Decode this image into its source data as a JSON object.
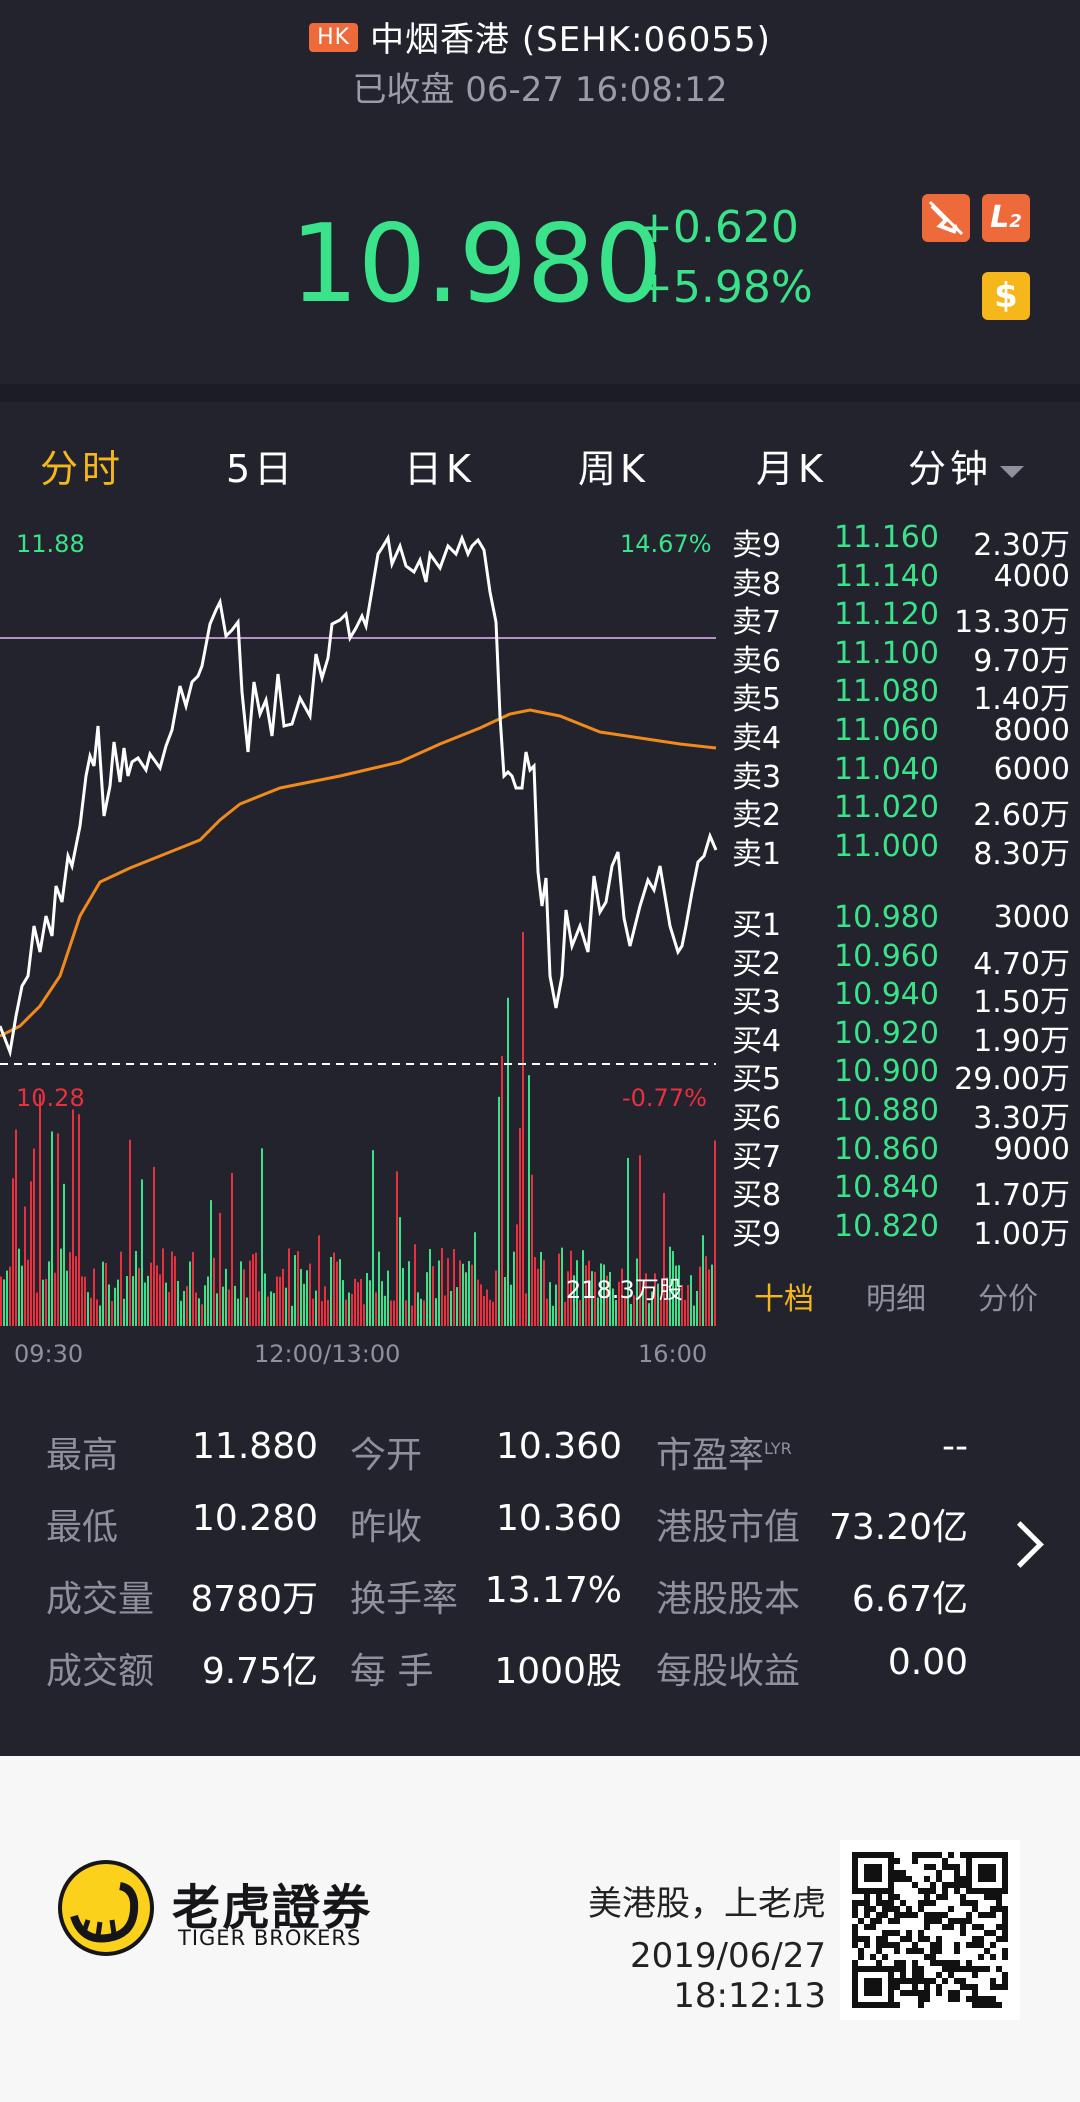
{
  "header": {
    "market_badge": "HK",
    "title": "中烟香港 (SEHK:06055)",
    "status": "已收盘 06-27 16:08:12",
    "price": "10.980",
    "change": "+0.620",
    "change_pct": "+5.98%",
    "icons": [
      "bell-off-icon",
      "level2-icon",
      "dollar-icon"
    ],
    "l2_label": "L",
    "l2_sub": "2",
    "dollar_label": "$"
  },
  "tabs": [
    {
      "label": "分时",
      "active": true
    },
    {
      "label": "5日"
    },
    {
      "label": "日K"
    },
    {
      "label": "周K"
    },
    {
      "label": "月K"
    },
    {
      "label": "分钟"
    }
  ],
  "chart": {
    "price_high_label": "11.88",
    "price_low_label": "10.28",
    "pct_high_label": "14.67%",
    "pct_low_label": "-0.77%",
    "volume_label": "218.3万股",
    "time_labels": [
      "09:30",
      "12:00/13:00",
      "16:00"
    ]
  },
  "chart_data": {
    "type": "line",
    "x": [
      "09:30",
      "12:00/13:00",
      "16:00"
    ],
    "ylim": [
      10.28,
      11.88
    ],
    "prev_close": 10.36,
    "series": [],
    "reference_lines": [
      10.36
    ]
  },
  "orderbook": {
    "asks": [
      {
        "side": "卖9",
        "price": "11.160",
        "vol": "2.30万"
      },
      {
        "side": "卖8",
        "price": "11.140",
        "vol": "4000"
      },
      {
        "side": "卖7",
        "price": "11.120",
        "vol": "13.30万"
      },
      {
        "side": "卖6",
        "price": "11.100",
        "vol": "9.70万"
      },
      {
        "side": "卖5",
        "price": "11.080",
        "vol": "1.40万"
      },
      {
        "side": "卖4",
        "price": "11.060",
        "vol": "8000"
      },
      {
        "side": "卖3",
        "price": "11.040",
        "vol": "6000"
      },
      {
        "side": "卖2",
        "price": "11.020",
        "vol": "2.60万"
      },
      {
        "side": "卖1",
        "price": "11.000",
        "vol": "8.30万"
      }
    ],
    "bids": [
      {
        "side": "买1",
        "price": "10.980",
        "vol": "3000"
      },
      {
        "side": "买2",
        "price": "10.960",
        "vol": "4.70万"
      },
      {
        "side": "买3",
        "price": "10.940",
        "vol": "1.50万"
      },
      {
        "side": "买4",
        "price": "10.920",
        "vol": "1.90万"
      },
      {
        "side": "买5",
        "price": "10.900",
        "vol": "29.00万"
      },
      {
        "side": "买6",
        "price": "10.880",
        "vol": "3.30万"
      },
      {
        "side": "买7",
        "price": "10.860",
        "vol": "9000"
      },
      {
        "side": "买8",
        "price": "10.840",
        "vol": "1.70万"
      },
      {
        "side": "买9",
        "price": "10.820",
        "vol": "1.00万"
      }
    ],
    "tabs": [
      {
        "label": "十档",
        "active": true
      },
      {
        "label": "明细"
      },
      {
        "label": "分价"
      }
    ]
  },
  "stats": {
    "col1": [
      {
        "label": "最高",
        "value": "11.880"
      },
      {
        "label": "最低",
        "value": "10.280"
      },
      {
        "label": "成交量",
        "value": "8780万"
      },
      {
        "label": "成交额",
        "value": "9.75亿"
      }
    ],
    "col2": [
      {
        "label": "今开",
        "value": "10.360"
      },
      {
        "label": "昨收",
        "value": "10.360"
      },
      {
        "label": "换手率",
        "value": "13.17%"
      },
      {
        "label": "每 手",
        "value": "1000股"
      }
    ],
    "col3": [
      {
        "label": "市盈率",
        "sup": "LYR",
        "value": "--"
      },
      {
        "label": "港股市值",
        "value": "73.20亿"
      },
      {
        "label": "港股股本",
        "value": "6.67亿"
      },
      {
        "label": "每股收益",
        "value": "0.00"
      }
    ]
  },
  "footer": {
    "brand_cn": "老虎證券",
    "brand_en": "TIGER BROKERS",
    "slogan": "美港股，上老虎",
    "datetime": "2019/06/27 18:12:13"
  },
  "colors": {
    "bg": "#22232d",
    "up": "#3ae389",
    "down": "#e8303f",
    "accent": "#f5b71a",
    "avg_line": "#f08a1c",
    "footer_bg": "#f7f7f7"
  }
}
